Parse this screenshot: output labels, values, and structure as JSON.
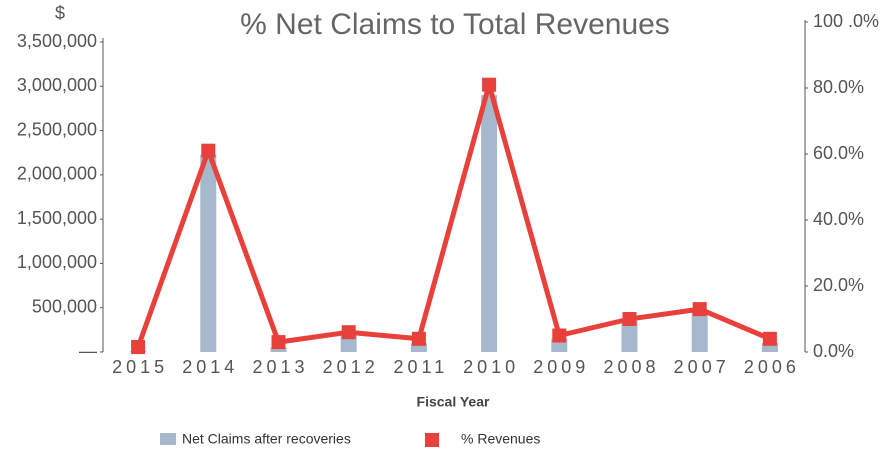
{
  "chart_data": {
    "type": "bar",
    "title": "% Net Claims to Total Revenues",
    "y_label": "$",
    "x_label": "Fiscal Year",
    "categories": [
      "2015",
      "2014",
      "2013",
      "2012",
      "2011",
      "2010",
      "2009",
      "2008",
      "2007",
      "2006"
    ],
    "series": [
      {
        "name": "Net Claims after recoveries",
        "type": "bar",
        "axis": "y",
        "color": "#a5b8cc",
        "values": [
          10000,
          2230000,
          50000,
          200000,
          100000,
          2900000,
          150000,
          350000,
          450000,
          100000
        ]
      },
      {
        "name": "% Revenues",
        "type": "line",
        "axis": "y2",
        "color": "#e8403a",
        "values": [
          1.5,
          61,
          3,
          6,
          4,
          81,
          5,
          10,
          13,
          4
        ]
      }
    ],
    "ylim": [
      0,
      3500000
    ],
    "yticks": [
      {
        "value": 0,
        "label": "—"
      },
      {
        "value": 500000,
        "label": "500,000"
      },
      {
        "value": 1000000,
        "label": "1,000,000"
      },
      {
        "value": 1500000,
        "label": "1,500,000"
      },
      {
        "value": 2000000,
        "label": "2,000,000"
      },
      {
        "value": 2500000,
        "label": "2,500,000"
      },
      {
        "value": 3000000,
        "label": "3,000,000"
      },
      {
        "value": 3500000,
        "label": "3,500,000"
      }
    ],
    "y2lim": [
      0,
      100
    ],
    "y2ticks": [
      {
        "value": 0,
        "label": "0.0%"
      },
      {
        "value": 20,
        "label": "20.0%"
      },
      {
        "value": 40,
        "label": "40.0%"
      },
      {
        "value": 60,
        "label": "60.0%"
      },
      {
        "value": 80,
        "label": "80.0%"
      },
      {
        "value": 100,
        "label": "100 .0%"
      }
    ],
    "grid": false,
    "legend": "bottom"
  }
}
